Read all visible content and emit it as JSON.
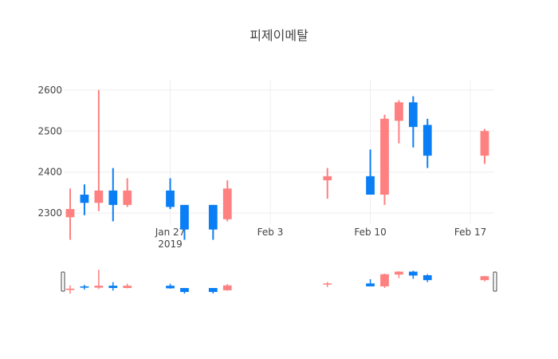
{
  "chart_data": {
    "type": "candlestick",
    "title": "피제이메탈",
    "xlabel": "",
    "ylabel": "",
    "ylim": [
      2275,
      2625
    ],
    "yticks": [
      2300,
      2400,
      2500,
      2600
    ],
    "xticks": [
      {
        "date": "2019-01-27",
        "label": "Jan 27",
        "sublabel": "2019"
      },
      {
        "date": "2019-02-03",
        "label": "Feb 3",
        "sublabel": ""
      },
      {
        "date": "2019-02-10",
        "label": "Feb 10",
        "sublabel": ""
      },
      {
        "date": "2019-02-17",
        "label": "Feb 17",
        "sublabel": ""
      }
    ],
    "xrange": [
      "2019-01-20",
      "2019-02-18"
    ],
    "grid": true,
    "legend": "none",
    "colors": {
      "increasing": "#0a7ef5",
      "decreasing": "#ff8080",
      "grid": "#eeeeee",
      "text": "#444444"
    },
    "rangeslider": true,
    "candles": [
      {
        "date": "2019-01-20",
        "open": 2310,
        "high": 2360,
        "low": 2235,
        "close": 2290
      },
      {
        "date": "2019-01-21",
        "open": 2325,
        "high": 2370,
        "low": 2295,
        "close": 2345
      },
      {
        "date": "2019-01-22",
        "open": 2355,
        "high": 2600,
        "low": 2305,
        "close": 2325
      },
      {
        "date": "2019-01-23",
        "open": 2320,
        "high": 2410,
        "low": 2280,
        "close": 2355
      },
      {
        "date": "2019-01-24",
        "open": 2355,
        "high": 2385,
        "low": 2315,
        "close": 2320
      },
      {
        "date": "2019-01-27",
        "open": 2315,
        "high": 2385,
        "low": 2310,
        "close": 2355
      },
      {
        "date": "2019-01-28",
        "open": 2260,
        "high": 2320,
        "low": 2235,
        "close": 2320
      },
      {
        "date": "2019-01-30",
        "open": 2260,
        "high": 2320,
        "low": 2235,
        "close": 2320
      },
      {
        "date": "2019-01-31",
        "open": 2360,
        "high": 2380,
        "low": 2280,
        "close": 2285
      },
      {
        "date": "2019-02-07",
        "open": 2390,
        "high": 2410,
        "low": 2335,
        "close": 2380
      },
      {
        "date": "2019-02-10",
        "open": 2345,
        "high": 2455,
        "low": 2345,
        "close": 2390
      },
      {
        "date": "2019-02-11",
        "open": 2530,
        "high": 2540,
        "low": 2320,
        "close": 2345
      },
      {
        "date": "2019-02-12",
        "open": 2570,
        "high": 2575,
        "low": 2470,
        "close": 2525
      },
      {
        "date": "2019-02-13",
        "open": 2510,
        "high": 2585,
        "low": 2460,
        "close": 2570
      },
      {
        "date": "2019-02-14",
        "open": 2440,
        "high": 2530,
        "low": 2410,
        "close": 2515
      },
      {
        "date": "2019-02-18",
        "open": 2500,
        "high": 2505,
        "low": 2420,
        "close": 2440
      }
    ]
  }
}
